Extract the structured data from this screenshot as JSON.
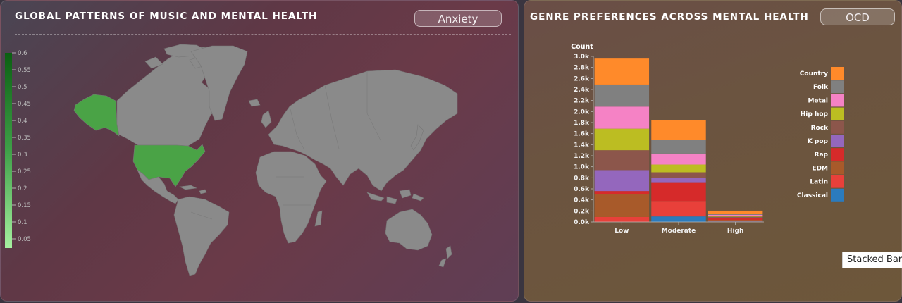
{
  "map_panel": {
    "title": "GLOBAL PATTERNS OF MUSIC AND MENTAL HEALTH",
    "selector_value": "Anxiety",
    "colorbar_ticks": [
      "0.6",
      "0.55",
      "0.5",
      "0.45",
      "0.4",
      "0.35",
      "0.3",
      "0.25",
      "0.2",
      "0.15",
      "0.1",
      "0.05"
    ],
    "colors": {
      "low": "#a6f0a0",
      "high": "#0b5f12",
      "country_default": "#8a8a8a",
      "highlight": "#4aa346"
    }
  },
  "chart_panel": {
    "title": "GENRE PREFERENCES ACROSS MENTAL HEALTH",
    "selector_value": "OCD"
  },
  "tooltip": {
    "text": "Stacked Bar"
  },
  "chart_data": {
    "type": "bar",
    "stacked": true,
    "ylabel": "Count",
    "categories": [
      "Low",
      "Moderate",
      "High"
    ],
    "ylim": [
      0,
      3000
    ],
    "yticks": [
      {
        "v": 0,
        "label": "0.0k"
      },
      {
        "v": 200,
        "label": "0.2k"
      },
      {
        "v": 400,
        "label": "0.4k"
      },
      {
        "v": 600,
        "label": "0.6k"
      },
      {
        "v": 800,
        "label": "0.8k"
      },
      {
        "v": 1000,
        "label": "1.0k"
      },
      {
        "v": 1200,
        "label": "1.2k"
      },
      {
        "v": 1400,
        "label": "1.4k"
      },
      {
        "v": 1600,
        "label": "1.6k"
      },
      {
        "v": 1800,
        "label": "1.8k"
      },
      {
        "v": 2000,
        "label": "2.0k"
      },
      {
        "v": 2200,
        "label": "2.2k"
      },
      {
        "v": 2400,
        "label": "2.4k"
      },
      {
        "v": 2600,
        "label": "2.6k"
      },
      {
        "v": 2800,
        "label": "2.8k"
      },
      {
        "v": 3000,
        "label": "3.0k"
      }
    ],
    "legend_position": "right",
    "series": [
      {
        "name": "Classical",
        "color": "#2b7bbd",
        "values": [
          0,
          100,
          10
        ]
      },
      {
        "name": "Latin",
        "color": "#e8403a",
        "values": [
          90,
          280,
          20
        ]
      },
      {
        "name": "EDM",
        "color": "#a85a2a",
        "values": [
          420,
          0,
          10
        ]
      },
      {
        "name": "Rap",
        "color": "#d62a2a",
        "values": [
          50,
          340,
          30
        ]
      },
      {
        "name": "K pop",
        "color": "#9467bd",
        "values": [
          380,
          80,
          10
        ]
      },
      {
        "name": "Rock",
        "color": "#8c564b",
        "values": [
          360,
          100,
          15
        ]
      },
      {
        "name": "Hip hop",
        "color": "#bcbd22",
        "values": [
          390,
          140,
          10
        ]
      },
      {
        "name": "Metal",
        "color": "#f582c5",
        "values": [
          400,
          200,
          25
        ]
      },
      {
        "name": "Folk",
        "color": "#808080",
        "values": [
          400,
          250,
          20
        ]
      },
      {
        "name": "Country",
        "color": "#ff8a2a",
        "values": [
          470,
          360,
          55
        ]
      }
    ]
  }
}
